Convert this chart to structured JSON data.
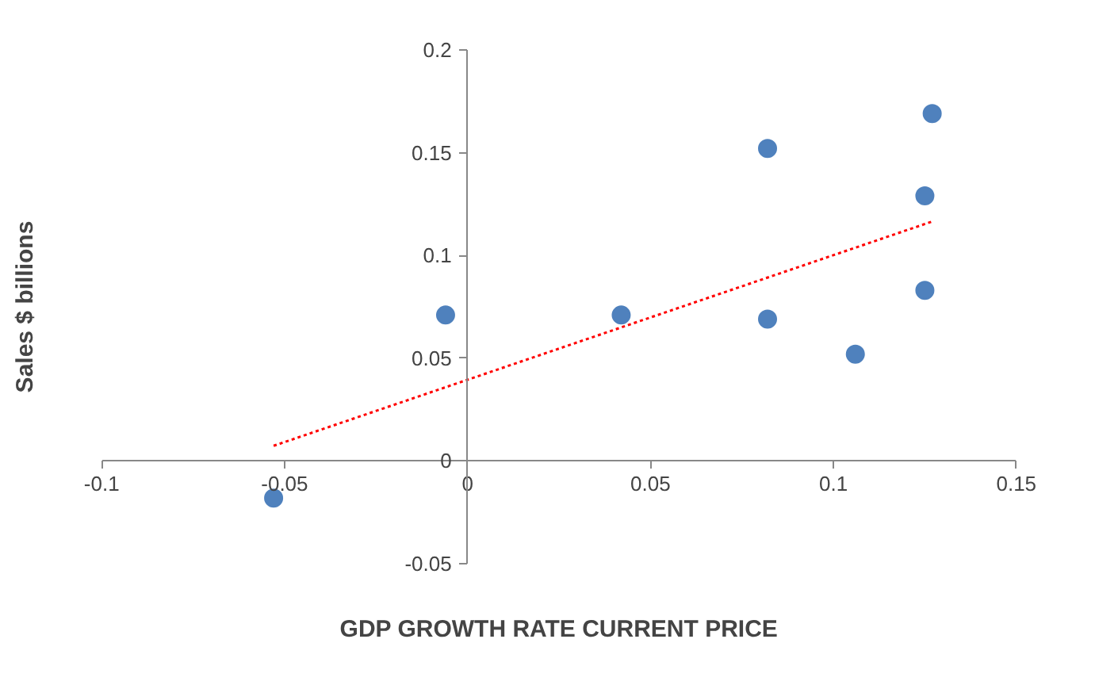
{
  "chart_data": {
    "type": "scatter",
    "xlabel": "GDP GROWTH RATE CURRENT PRICE",
    "ylabel": "Sales $ billions",
    "xlim": [
      -0.1,
      0.15
    ],
    "xticks": [
      -0.1,
      -0.05,
      0,
      0.05,
      0.1,
      0.15
    ],
    "ylim": [
      -0.05,
      0.2
    ],
    "yticks": [
      -0.05,
      0,
      0.05,
      0.1,
      0.15,
      0.2
    ],
    "grid": false,
    "series": [
      {
        "marker": "circle",
        "color": "#4f81bd",
        "x": [
          -0.053,
          -0.006,
          0.042,
          0.082,
          0.082,
          0.106,
          0.125,
          0.125,
          0.127
        ],
        "values": [
          -0.018,
          0.071,
          0.071,
          0.152,
          0.069,
          0.052,
          0.129,
          0.083,
          0.169
        ]
      },
      {
        "type": "line",
        "color": "#ff0000",
        "line_style": "dotted",
        "x": [
          -0.053,
          0.127
        ],
        "values": [
          0.0074,
          0.1165
        ]
      }
    ]
  }
}
